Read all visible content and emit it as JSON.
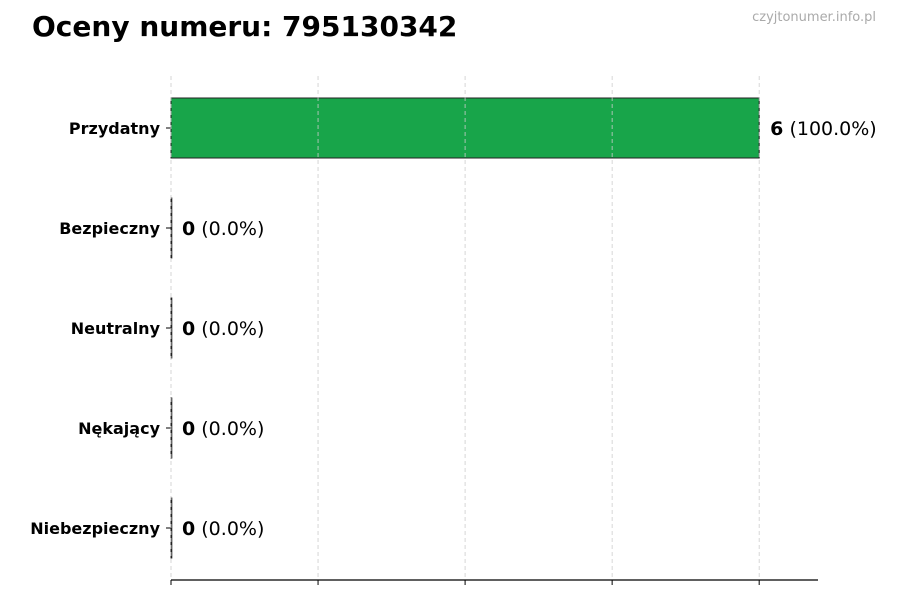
{
  "chart_data": {
    "type": "bar",
    "orientation": "horizontal",
    "title": "Oceny numeru: 795130342",
    "watermark": "czyjtonumer.info.pl",
    "categories": [
      "Przydatny",
      "Bezpieczny",
      "Neutralny",
      "Nękający",
      "Niebezpieczny"
    ],
    "values": [
      6,
      0,
      0,
      0,
      0
    ],
    "percent_labels": [
      "(100.0%)",
      "(0.0%)",
      "(0.0%)",
      "(0.0%)",
      "(0.0%)"
    ],
    "xlim": [
      0,
      6.6
    ],
    "xticks": [
      0,
      1.5,
      3,
      4.5,
      6
    ],
    "grid": "vertical dashed",
    "bar_color": "#18a54a",
    "xlabel": "",
    "ylabel": ""
  }
}
